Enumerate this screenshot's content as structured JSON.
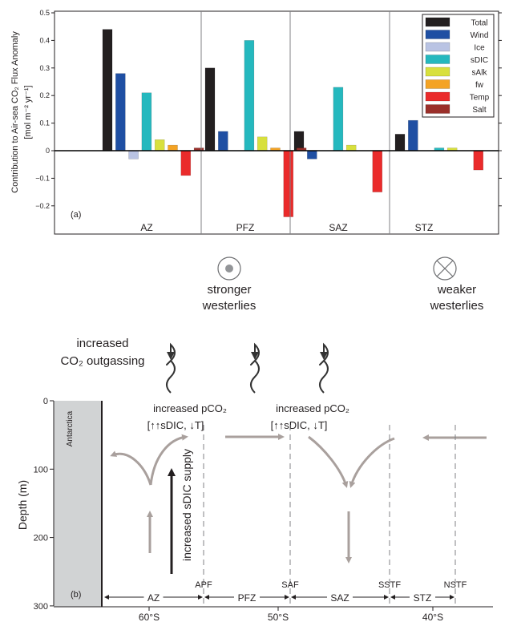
{
  "chart_data": [
    {
      "type": "bar",
      "panel_label": "(a)",
      "ylabel_line1": "Contribution to Air-sea CO₂ Flux Anomaly",
      "ylabel_line2": "[mol m⁻² yr⁻¹]",
      "categories": [
        "AZ",
        "PFZ",
        "SAZ",
        "STZ"
      ],
      "ylim": [
        -0.25,
        0.5
      ],
      "yticks": [
        "0.5",
        "0.4",
        "0.3",
        "0.2",
        "0.1",
        "0",
        "−0.1",
        "−0.2"
      ],
      "ytick_values": [
        0.5,
        0.4,
        0.3,
        0.2,
        0.1,
        0,
        -0.1,
        -0.2
      ],
      "legend_position": "top-right",
      "series": [
        {
          "name": "Total",
          "color": "#231f20",
          "values": [
            0.44,
            0.3,
            0.07,
            0.06
          ]
        },
        {
          "name": "Wind",
          "color": "#1f4fa3",
          "values": [
            0.28,
            0.07,
            -0.03,
            0.11
          ]
        },
        {
          "name": "Ice",
          "color": "#b9c3e3",
          "values": [
            -0.03,
            0,
            0,
            0
          ]
        },
        {
          "name": "sDIC",
          "color": "#25b8be",
          "values": [
            0.21,
            0.4,
            0.23,
            0.01
          ]
        },
        {
          "name": "sAlk",
          "color": "#d8e03d",
          "values": [
            0.04,
            0.05,
            0.02,
            0.01
          ]
        },
        {
          "name": "fw",
          "color": "#f4a324",
          "values": [
            0.02,
            0.01,
            0,
            0
          ]
        },
        {
          "name": "Temp",
          "color": "#ea2b2b",
          "values": [
            -0.09,
            -0.24,
            -0.15,
            -0.07
          ]
        },
        {
          "name": "Salt",
          "color": "#9a2f2a",
          "values": [
            0.01,
            0.01,
            0,
            0
          ]
        }
      ]
    },
    {
      "type": "diagram",
      "panel_label": "(b)",
      "ylabel": "Depth (m)",
      "yticks": [
        "0",
        "100",
        "200",
        "300"
      ],
      "ytick_values": [
        0,
        100,
        200,
        300
      ],
      "xticks": [
        "60°S",
        "50°S",
        "40°S"
      ],
      "fronts": [
        "APF",
        "SAF",
        "SSTF",
        "NSTF"
      ],
      "zones": [
        "AZ",
        "PFZ",
        "SAZ",
        "STZ"
      ],
      "land_label": "Antarctica"
    }
  ],
  "annotations": {
    "stronger_line1": "stronger",
    "stronger_line2": "westerlies",
    "weaker_line1": "weaker",
    "weaker_line2": "westerlies",
    "outgassing_line1": "increased",
    "outgassing_line2": "CO₂ outgassing",
    "pco2_label": "increased pCO₂",
    "pco2_detail": "[↑↑sDIC, ↓T]",
    "supply_label": "increased sDIC supply"
  },
  "colors": {
    "circulation_arrow": "#a9a09d",
    "supply_arrow": "#231f20",
    "land": "#d1d3d4"
  }
}
